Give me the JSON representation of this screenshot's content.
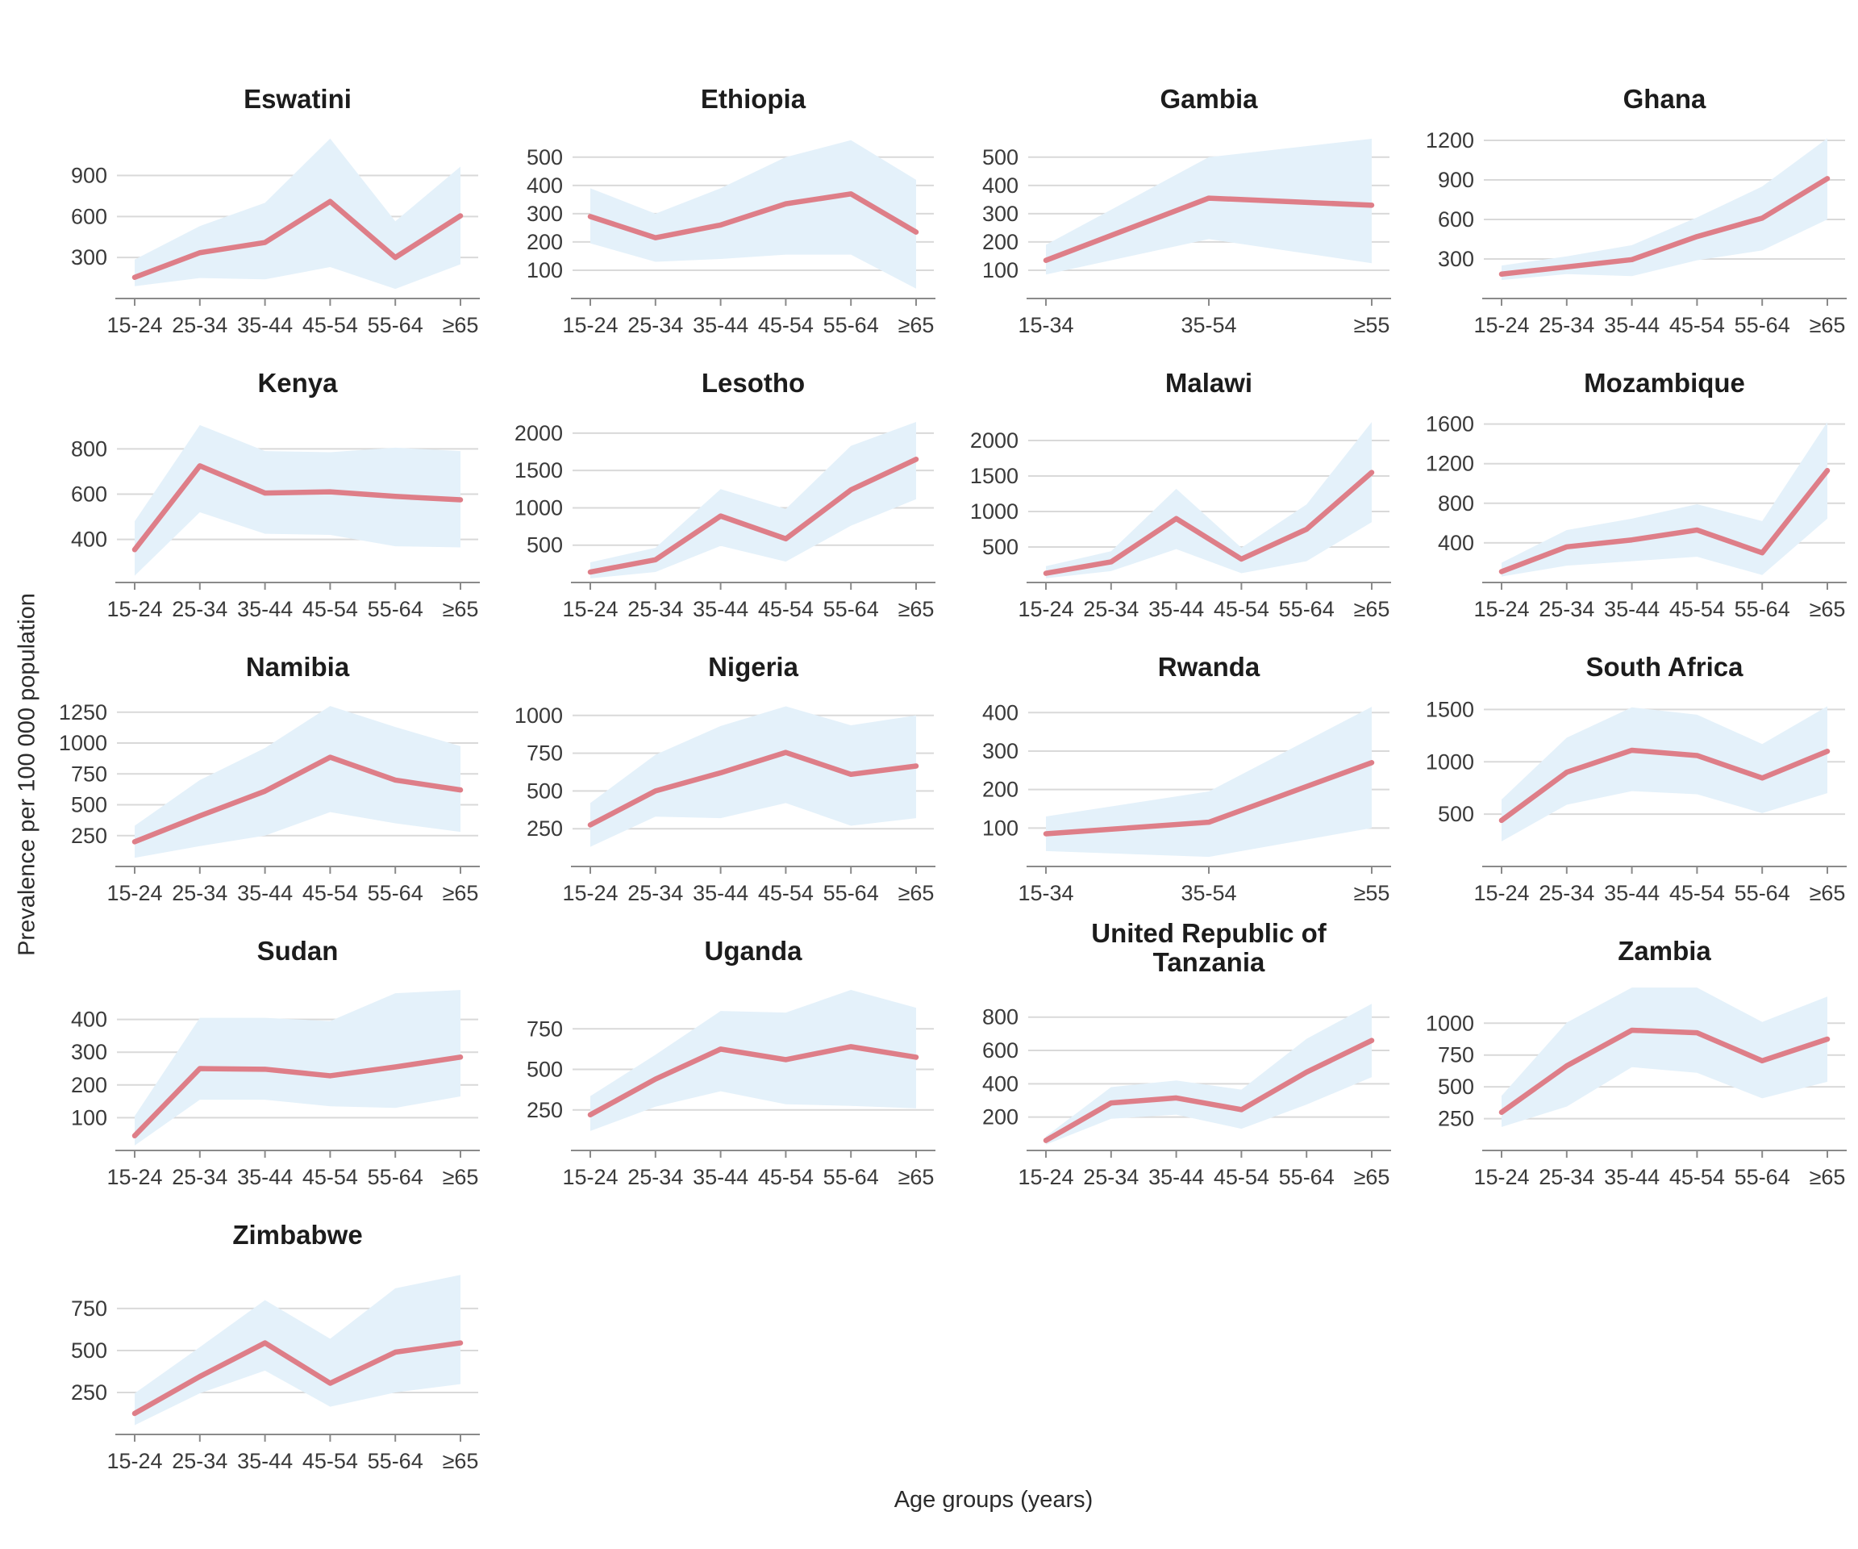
{
  "ylabel": "Prevalence per 100 000 population",
  "xlabel": "Age groups (years)",
  "colors": {
    "line": "#de7e88",
    "band": "#e4f1fa",
    "grid": "#d9d9d9",
    "axis": "#8a8a8a",
    "tick_text": "#3a3a3a",
    "title_text": "#1c1c1c"
  },
  "chart_data": [
    {
      "type": "line",
      "title": "Eswatini",
      "categories": [
        "15-24",
        "25-34",
        "35-44",
        "45-54",
        "55-64",
        "≥65"
      ],
      "series": [
        {
          "name": "prevalence",
          "values": [
            155,
            335,
            410,
            710,
            300,
            605
          ]
        },
        {
          "name": "lower_ci",
          "values": [
            90,
            150,
            140,
            230,
            70,
            250
          ]
        },
        {
          "name": "upper_ci",
          "values": [
            285,
            530,
            700,
            1170,
            565,
            965
          ]
        }
      ],
      "yticks": [
        300,
        600,
        900
      ],
      "ylim": [
        0,
        1210
      ]
    },
    {
      "type": "line",
      "title": "Ethiopia",
      "categories": [
        "15-24",
        "25-34",
        "35-44",
        "45-54",
        "55-64",
        "≥65"
      ],
      "series": [
        {
          "name": "prevalence",
          "values": [
            290,
            215,
            260,
            335,
            370,
            235
          ]
        },
        {
          "name": "lower_ci",
          "values": [
            195,
            130,
            140,
            155,
            155,
            35
          ]
        },
        {
          "name": "upper_ci",
          "values": [
            390,
            300,
            390,
            500,
            560,
            420
          ]
        }
      ],
      "yticks": [
        100,
        200,
        300,
        400,
        500
      ],
      "ylim": [
        0,
        585
      ]
    },
    {
      "type": "line",
      "title": "Gambia",
      "categories": [
        "15-34",
        "35-54",
        "≥55"
      ],
      "series": [
        {
          "name": "prevalence",
          "values": [
            135,
            355,
            330
          ]
        },
        {
          "name": "lower_ci",
          "values": [
            85,
            210,
            125
          ]
        },
        {
          "name": "upper_ci",
          "values": [
            190,
            500,
            565
          ]
        }
      ],
      "yticks": [
        100,
        200,
        300,
        400,
        500
      ],
      "ylim": [
        0,
        585
      ]
    },
    {
      "type": "line",
      "title": "Ghana",
      "categories": [
        "15-24",
        "25-34",
        "35-44",
        "45-54",
        "55-64",
        "≥65"
      ],
      "series": [
        {
          "name": "prevalence",
          "values": [
            185,
            240,
            295,
            470,
            610,
            910
          ]
        },
        {
          "name": "lower_ci",
          "values": [
            140,
            185,
            170,
            290,
            365,
            600
          ]
        },
        {
          "name": "upper_ci",
          "values": [
            250,
            320,
            405,
            615,
            850,
            1215
          ]
        }
      ],
      "yticks": [
        300,
        600,
        900,
        1200
      ],
      "ylim": [
        0,
        1255
      ]
    },
    {
      "type": "line",
      "title": "Kenya",
      "categories": [
        "15-24",
        "25-34",
        "35-44",
        "45-54",
        "55-64",
        "≥65"
      ],
      "series": [
        {
          "name": "prevalence",
          "values": [
            355,
            725,
            605,
            610,
            590,
            575
          ]
        },
        {
          "name": "lower_ci",
          "values": [
            240,
            520,
            425,
            420,
            370,
            365
          ]
        },
        {
          "name": "upper_ci",
          "values": [
            480,
            905,
            790,
            785,
            805,
            790
          ]
        }
      ],
      "yticks": [
        400,
        600,
        800
      ],
      "ylim": [
        210,
        940
      ]
    },
    {
      "type": "line",
      "title": "Lesotho",
      "categories": [
        "15-24",
        "25-34",
        "35-44",
        "45-54",
        "55-64",
        "≥65"
      ],
      "series": [
        {
          "name": "prevalence",
          "values": [
            140,
            305,
            890,
            585,
            1240,
            1650
          ]
        },
        {
          "name": "lower_ci",
          "values": [
            55,
            140,
            490,
            280,
            760,
            1115
          ]
        },
        {
          "name": "upper_ci",
          "values": [
            270,
            465,
            1250,
            985,
            1830,
            2150
          ]
        }
      ],
      "yticks": [
        500,
        1000,
        1500,
        2000
      ],
      "ylim": [
        0,
        2215
      ]
    },
    {
      "type": "line",
      "title": "Malawi",
      "categories": [
        "15-24",
        "25-34",
        "35-44",
        "45-54",
        "55-64",
        "≥65"
      ],
      "series": [
        {
          "name": "prevalence",
          "values": [
            130,
            290,
            900,
            330,
            750,
            1550
          ]
        },
        {
          "name": "lower_ci",
          "values": [
            60,
            160,
            470,
            130,
            300,
            850
          ]
        },
        {
          "name": "upper_ci",
          "values": [
            230,
            440,
            1320,
            490,
            1100,
            2260
          ]
        }
      ],
      "yticks": [
        500,
        1000,
        1500,
        2000
      ],
      "ylim": [
        0,
        2330
      ]
    },
    {
      "type": "line",
      "title": "Mozambique",
      "categories": [
        "15-24",
        "25-34",
        "35-44",
        "45-54",
        "55-64",
        "≥65"
      ],
      "series": [
        {
          "name": "prevalence",
          "values": [
            110,
            360,
            430,
            530,
            300,
            1130
          ]
        },
        {
          "name": "lower_ci",
          "values": [
            60,
            170,
            215,
            260,
            75,
            645
          ]
        },
        {
          "name": "upper_ci",
          "values": [
            200,
            530,
            645,
            790,
            620,
            1620
          ]
        }
      ],
      "yticks": [
        400,
        800,
        1200,
        1600
      ],
      "ylim": [
        0,
        1670
      ]
    },
    {
      "type": "line",
      "title": "Namibia",
      "categories": [
        "15-24",
        "25-34",
        "35-44",
        "45-54",
        "55-64",
        "≥65"
      ],
      "series": [
        {
          "name": "prevalence",
          "values": [
            200,
            410,
            610,
            885,
            700,
            620
          ]
        },
        {
          "name": "lower_ci",
          "values": [
            70,
            165,
            250,
            440,
            350,
            280
          ]
        },
        {
          "name": "upper_ci",
          "values": [
            330,
            700,
            960,
            1300,
            1130,
            975
          ]
        }
      ],
      "yticks": [
        250,
        500,
        750,
        1000,
        1250
      ],
      "ylim": [
        0,
        1340
      ]
    },
    {
      "type": "line",
      "title": "Nigeria",
      "categories": [
        "15-24",
        "25-34",
        "35-44",
        "45-54",
        "55-64",
        "≥65"
      ],
      "series": [
        {
          "name": "prevalence",
          "values": [
            275,
            500,
            620,
            755,
            610,
            665
          ]
        },
        {
          "name": "lower_ci",
          "values": [
            130,
            330,
            320,
            420,
            270,
            320
          ]
        },
        {
          "name": "upper_ci",
          "values": [
            420,
            740,
            930,
            1060,
            935,
            1000
          ]
        }
      ],
      "yticks": [
        250,
        500,
        750,
        1000
      ],
      "ylim": [
        0,
        1095
      ]
    },
    {
      "type": "line",
      "title": "Rwanda",
      "categories": [
        "15-34",
        "35-54",
        "≥55"
      ],
      "series": [
        {
          "name": "prevalence",
          "values": [
            85,
            115,
            270
          ]
        },
        {
          "name": "lower_ci",
          "values": [
            40,
            25,
            100
          ]
        },
        {
          "name": "upper_ci",
          "values": [
            130,
            195,
            415
          ]
        }
      ],
      "yticks": [
        100,
        200,
        300,
        400
      ],
      "ylim": [
        0,
        430
      ]
    },
    {
      "type": "line",
      "title": "South Africa",
      "categories": [
        "15-24",
        "25-34",
        "35-44",
        "45-54",
        "55-64",
        "≥65"
      ],
      "series": [
        {
          "name": "prevalence",
          "values": [
            440,
            900,
            1110,
            1060,
            845,
            1100
          ]
        },
        {
          "name": "lower_ci",
          "values": [
            240,
            590,
            720,
            690,
            510,
            700
          ]
        },
        {
          "name": "upper_ci",
          "values": [
            640,
            1230,
            1520,
            1450,
            1170,
            1530
          ]
        }
      ],
      "yticks": [
        500,
        1000,
        1500
      ],
      "ylim": [
        0,
        1580
      ]
    },
    {
      "type": "line",
      "title": "Sudan",
      "categories": [
        "15-24",
        "25-34",
        "35-44",
        "45-54",
        "55-64",
        "≥65"
      ],
      "series": [
        {
          "name": "prevalence",
          "values": [
            45,
            250,
            248,
            228,
            255,
            285
          ]
        },
        {
          "name": "lower_ci",
          "values": [
            15,
            155,
            155,
            135,
            130,
            165
          ]
        },
        {
          "name": "upper_ci",
          "values": [
            105,
            405,
            405,
            395,
            480,
            490
          ]
        }
      ],
      "yticks": [
        100,
        200,
        300,
        400
      ],
      "ylim": [
        0,
        505
      ]
    },
    {
      "type": "line",
      "title": "Uganda",
      "categories": [
        "15-24",
        "25-34",
        "35-44",
        "45-54",
        "55-64",
        "≥65"
      ],
      "series": [
        {
          "name": "prevalence",
          "values": [
            220,
            440,
            625,
            560,
            640,
            575
          ]
        },
        {
          "name": "lower_ci",
          "values": [
            120,
            270,
            365,
            285,
            275,
            260
          ]
        },
        {
          "name": "upper_ci",
          "values": [
            335,
            590,
            860,
            850,
            990,
            880
          ]
        }
      ],
      "yticks": [
        250,
        500,
        750
      ],
      "ylim": [
        0,
        1020
      ]
    },
    {
      "type": "line",
      "title": "United Republic of Tanzania",
      "categories": [
        "15-24",
        "25-34",
        "35-44",
        "45-54",
        "55-64",
        "≥65"
      ],
      "series": [
        {
          "name": "prevalence",
          "values": [
            60,
            285,
            315,
            245,
            470,
            660
          ]
        },
        {
          "name": "lower_ci",
          "values": [
            35,
            190,
            215,
            130,
            275,
            440
          ]
        },
        {
          "name": "upper_ci",
          "values": [
            85,
            380,
            420,
            365,
            670,
            880
          ]
        }
      ],
      "yticks": [
        200,
        400,
        600,
        800
      ],
      "ylim": [
        0,
        910
      ]
    },
    {
      "type": "line",
      "title": "Zambia",
      "categories": [
        "15-24",
        "25-34",
        "35-44",
        "45-54",
        "55-64",
        "≥65"
      ],
      "series": [
        {
          "name": "prevalence",
          "values": [
            300,
            665,
            945,
            925,
            705,
            875
          ]
        },
        {
          "name": "lower_ci",
          "values": [
            185,
            345,
            655,
            610,
            410,
            540
          ]
        },
        {
          "name": "upper_ci",
          "values": [
            430,
            1005,
            1280,
            1280,
            1010,
            1210
          ]
        }
      ],
      "yticks": [
        250,
        500,
        750,
        1000
      ],
      "ylim": [
        0,
        1300
      ]
    },
    {
      "type": "line",
      "title": "Zimbabwe",
      "categories": [
        "15-24",
        "25-34",
        "35-44",
        "45-54",
        "55-64",
        "≥65"
      ],
      "series": [
        {
          "name": "prevalence",
          "values": [
            125,
            345,
            545,
            305,
            490,
            545
          ]
        },
        {
          "name": "lower_ci",
          "values": [
            55,
            245,
            380,
            165,
            250,
            300
          ]
        },
        {
          "name": "upper_ci",
          "values": [
            245,
            520,
            800,
            570,
            870,
            950
          ]
        }
      ],
      "yticks": [
        250,
        500,
        750
      ],
      "ylim": [
        0,
        985
      ]
    }
  ]
}
